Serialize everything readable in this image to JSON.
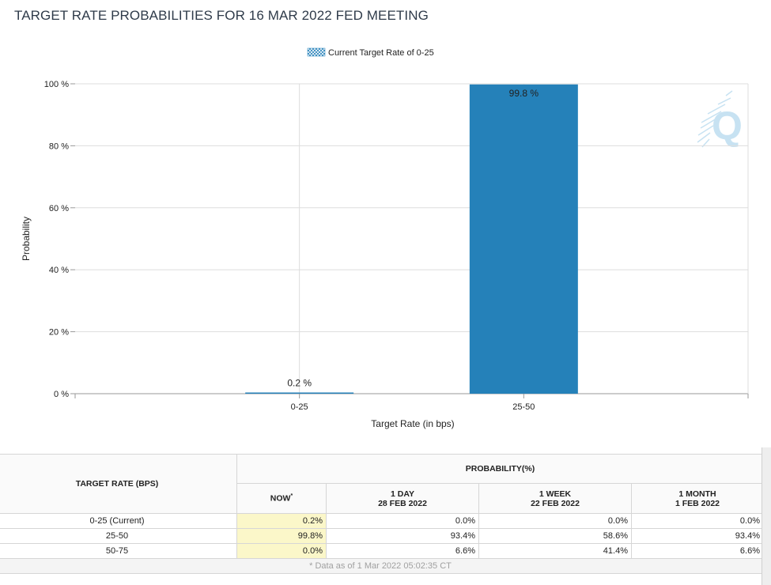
{
  "page": {
    "title": "TARGET RATE PROBABILITIES FOR 16 MAR 2022 FED MEETING"
  },
  "chart_data": {
    "type": "bar",
    "title": "TARGET RATE PROBABILITIES FOR 16 MAR 2022 FED MEETING",
    "legend": {
      "label": "Current Target Rate of 0-25",
      "position": "top-center"
    },
    "categories": [
      "0-25",
      "25-50"
    ],
    "values": [
      0.2,
      99.8
    ],
    "data_labels": [
      "0.2 %",
      "99.8 %"
    ],
    "xlabel": "Target Rate (in bps)",
    "ylabel": "Probability",
    "ylim": [
      0,
      100
    ],
    "yticks": [
      0,
      20,
      40,
      60,
      80,
      100
    ],
    "ytick_labels": [
      "0 %",
      "20 %",
      "40 %",
      "60 %",
      "80 %",
      "100 %"
    ],
    "grid": true,
    "colors": {
      "bar": "#2581b9",
      "grid": "#dddddd",
      "watermark": "#c7e2f2"
    },
    "watermark": "Q"
  },
  "table": {
    "target_header": "TARGET RATE (BPS)",
    "prob_header": "PROBABILITY(%)",
    "columns": [
      {
        "line1": "NOW",
        "marker": "*"
      },
      {
        "line1": "1 DAY",
        "line2": "28 FEB 2022"
      },
      {
        "line1": "1 WEEK",
        "line2": "22 FEB 2022"
      },
      {
        "line1": "1 MONTH",
        "line2": "1 FEB 2022"
      }
    ],
    "rows": [
      {
        "rate": "0-25 (Current)",
        "values": [
          "0.2%",
          "0.0%",
          "0.0%",
          "0.0%"
        ]
      },
      {
        "rate": "25-50",
        "values": [
          "99.8%",
          "93.4%",
          "58.6%",
          "93.4%"
        ]
      },
      {
        "rate": "50-75",
        "values": [
          "0.0%",
          "6.6%",
          "41.4%",
          "6.6%"
        ]
      }
    ],
    "footnote": "* Data as of 1 Mar 2022 05:02:35 CT"
  }
}
